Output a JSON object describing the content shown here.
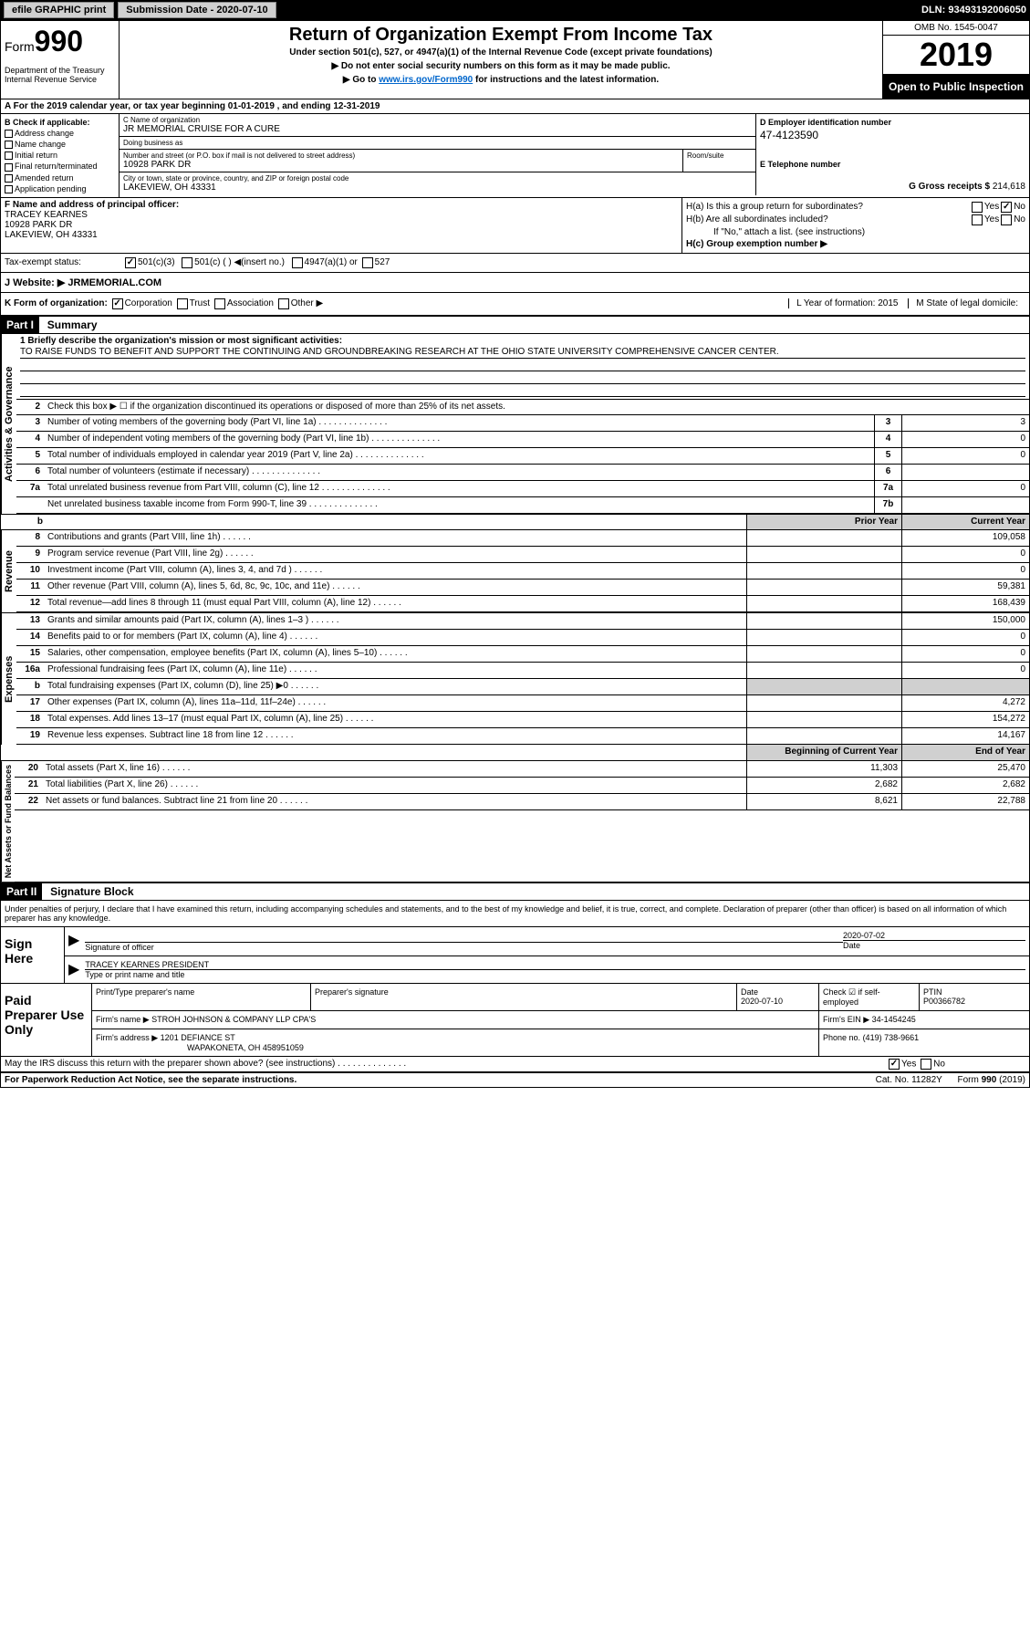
{
  "topbar": {
    "efile": "efile GRAPHIC print",
    "sub_label": "Submission Date - 2020-07-10",
    "dln": "DLN: 93493192006050"
  },
  "header": {
    "form_label": "Form",
    "form_num": "990",
    "dept": "Department of the Treasury Internal Revenue Service",
    "title": "Return of Organization Exempt From Income Tax",
    "sub": "Under section 501(c), 527, or 4947(a)(1) of the Internal Revenue Code (except private foundations)",
    "note1": "▶ Do not enter social security numbers on this form as it may be made public.",
    "note2_pre": "▶ Go to ",
    "note2_link": "www.irs.gov/Form990",
    "note2_post": " for instructions and the latest information.",
    "omb": "OMB No. 1545-0047",
    "year": "2019",
    "open": "Open to Public Inspection"
  },
  "lineA": "A For the 2019 calendar year, or tax year beginning 01-01-2019   , and ending 12-31-2019",
  "checkB": {
    "title": "B Check if applicable:",
    "items": [
      "Address change",
      "Name change",
      "Initial return",
      "Final return/terminated",
      "Amended return",
      "Application pending"
    ]
  },
  "blockC": {
    "name_label": "C Name of organization",
    "name": "JR MEMORIAL CRUISE FOR A CURE",
    "dba_label": "Doing business as",
    "dba": "",
    "addr_label": "Number and street (or P.O. box if mail is not delivered to street address)",
    "addr": "10928 PARK DR",
    "room_label": "Room/suite",
    "city_label": "City or town, state or province, country, and ZIP or foreign postal code",
    "city": "LAKEVIEW, OH  43331"
  },
  "blockD": {
    "label": "D Employer identification number",
    "val": "47-4123590"
  },
  "blockE": {
    "label": "E Telephone number",
    "val": ""
  },
  "blockG": {
    "label": "G Gross receipts $",
    "val": "214,618"
  },
  "blockF": {
    "label": "F  Name and address of principal officer:",
    "name": "TRACEY KEARNES",
    "addr1": "10928 PARK DR",
    "addr2": "LAKEVIEW, OH  43331"
  },
  "blockH": {
    "ha": "H(a)  Is this a group return for subordinates?",
    "hb": "H(b)  Are all subordinates included?",
    "hb_note": "If \"No,\" attach a list. (see instructions)",
    "hc": "H(c)  Group exemption number ▶"
  },
  "taxExempt": {
    "label": "Tax-exempt status:",
    "opt1": "501(c)(3)",
    "opt2": "501(c) (  ) ◀(insert no.)",
    "opt3": "4947(a)(1) or",
    "opt4": "527"
  },
  "website": {
    "label": "J   Website: ▶",
    "val": "JRMEMORIAL.COM"
  },
  "lineK": {
    "label": "K Form of organization:",
    "opts": [
      "Corporation",
      "Trust",
      "Association",
      "Other ▶"
    ],
    "L": "L Year of formation: 2015",
    "M": "M State of legal domicile:"
  },
  "part1": {
    "hdr": "Part I",
    "title": "Summary",
    "mission_label": "1   Briefly describe the organization's mission or most significant activities:",
    "mission": "TO RAISE FUNDS TO BENEFIT AND SUPPORT THE CONTINUING AND GROUNDBREAKING RESEARCH AT THE OHIO STATE UNIVERSITY COMPREHENSIVE CANCER CENTER.",
    "line2": "Check this box ▶ ☐ if the organization discontinued its operations or disposed of more than 25% of its net assets.",
    "sections": {
      "gov": "Activities & Governance",
      "rev": "Revenue",
      "exp": "Expenses",
      "net": "Net Assets or Fund Balances"
    },
    "rows_gov": [
      {
        "n": "3",
        "d": "Number of voting members of the governing body (Part VI, line 1a)",
        "box": "3",
        "v": "3"
      },
      {
        "n": "4",
        "d": "Number of independent voting members of the governing body (Part VI, line 1b)",
        "box": "4",
        "v": "0"
      },
      {
        "n": "5",
        "d": "Total number of individuals employed in calendar year 2019 (Part V, line 2a)",
        "box": "5",
        "v": "0"
      },
      {
        "n": "6",
        "d": "Total number of volunteers (estimate if necessary)",
        "box": "6",
        "v": ""
      },
      {
        "n": "7a",
        "d": "Total unrelated business revenue from Part VIII, column (C), line 12",
        "box": "7a",
        "v": "0"
      },
      {
        "n": "",
        "d": "Net unrelated business taxable income from Form 990-T, line 39",
        "box": "7b",
        "v": ""
      }
    ],
    "hdr_prior": "Prior Year",
    "hdr_curr": "Current Year",
    "rows_rev": [
      {
        "n": "8",
        "d": "Contributions and grants (Part VIII, line 1h)",
        "p": "",
        "c": "109,058"
      },
      {
        "n": "9",
        "d": "Program service revenue (Part VIII, line 2g)",
        "p": "",
        "c": "0"
      },
      {
        "n": "10",
        "d": "Investment income (Part VIII, column (A), lines 3, 4, and 7d )",
        "p": "",
        "c": "0"
      },
      {
        "n": "11",
        "d": "Other revenue (Part VIII, column (A), lines 5, 6d, 8c, 9c, 10c, and 11e)",
        "p": "",
        "c": "59,381"
      },
      {
        "n": "12",
        "d": "Total revenue—add lines 8 through 11 (must equal Part VIII, column (A), line 12)",
        "p": "",
        "c": "168,439"
      }
    ],
    "rows_exp": [
      {
        "n": "13",
        "d": "Grants and similar amounts paid (Part IX, column (A), lines 1–3 )",
        "p": "",
        "c": "150,000"
      },
      {
        "n": "14",
        "d": "Benefits paid to or for members (Part IX, column (A), line 4)",
        "p": "",
        "c": "0"
      },
      {
        "n": "15",
        "d": "Salaries, other compensation, employee benefits (Part IX, column (A), lines 5–10)",
        "p": "",
        "c": "0"
      },
      {
        "n": "16a",
        "d": "Professional fundraising fees (Part IX, column (A), line 11e)",
        "p": "",
        "c": "0"
      },
      {
        "n": "b",
        "d": "Total fundraising expenses (Part IX, column (D), line 25) ▶0",
        "p": "shade",
        "c": "shade"
      },
      {
        "n": "17",
        "d": "Other expenses (Part IX, column (A), lines 11a–11d, 11f–24e)",
        "p": "",
        "c": "4,272"
      },
      {
        "n": "18",
        "d": "Total expenses. Add lines 13–17 (must equal Part IX, column (A), line 25)",
        "p": "",
        "c": "154,272"
      },
      {
        "n": "19",
        "d": "Revenue less expenses. Subtract line 18 from line 12",
        "p": "",
        "c": "14,167"
      }
    ],
    "hdr_beg": "Beginning of Current Year",
    "hdr_end": "End of Year",
    "rows_net": [
      {
        "n": "20",
        "d": "Total assets (Part X, line 16)",
        "p": "11,303",
        "c": "25,470"
      },
      {
        "n": "21",
        "d": "Total liabilities (Part X, line 26)",
        "p": "2,682",
        "c": "2,682"
      },
      {
        "n": "22",
        "d": "Net assets or fund balances. Subtract line 21 from line 20",
        "p": "8,621",
        "c": "22,788"
      }
    ]
  },
  "part2": {
    "hdr": "Part II",
    "title": "Signature Block",
    "decl": "Under penalties of perjury, I declare that I have examined this return, including accompanying schedules and statements, and to the best of my knowledge and belief, it is true, correct, and complete. Declaration of preparer (other than officer) is based on all information of which preparer has any knowledge.",
    "sign": "Sign Here",
    "sig_officer": "Signature of officer",
    "sig_date": "Date",
    "sig_date_val": "2020-07-02",
    "sig_name": "TRACEY KEARNES  PRESIDENT",
    "sig_name_label": "Type or print name and title",
    "paid": "Paid Preparer Use Only",
    "prep_name_label": "Print/Type preparer's name",
    "prep_sig_label": "Preparer's signature",
    "prep_date_label": "Date",
    "prep_date": "2020-07-10",
    "prep_check": "Check ☑ if self-employed",
    "ptin_label": "PTIN",
    "ptin": "P00366782",
    "firm_name_label": "Firm's name    ▶",
    "firm_name": "STROH JOHNSON & COMPANY LLP CPA'S",
    "firm_ein_label": "Firm's EIN ▶",
    "firm_ein": "34-1454245",
    "firm_addr_label": "Firm's address ▶",
    "firm_addr1": "1201 DEFIANCE ST",
    "firm_addr2": "WAPAKONETA, OH  458951059",
    "phone_label": "Phone no.",
    "phone": "(419) 738-9661",
    "discuss": "May the IRS discuss this return with the preparer shown above? (see instructions)"
  },
  "footer": {
    "left": "For Paperwork Reduction Act Notice, see the separate instructions.",
    "mid": "Cat. No. 11282Y",
    "right": "Form 990 (2019)"
  },
  "yes": "Yes",
  "no": "No"
}
